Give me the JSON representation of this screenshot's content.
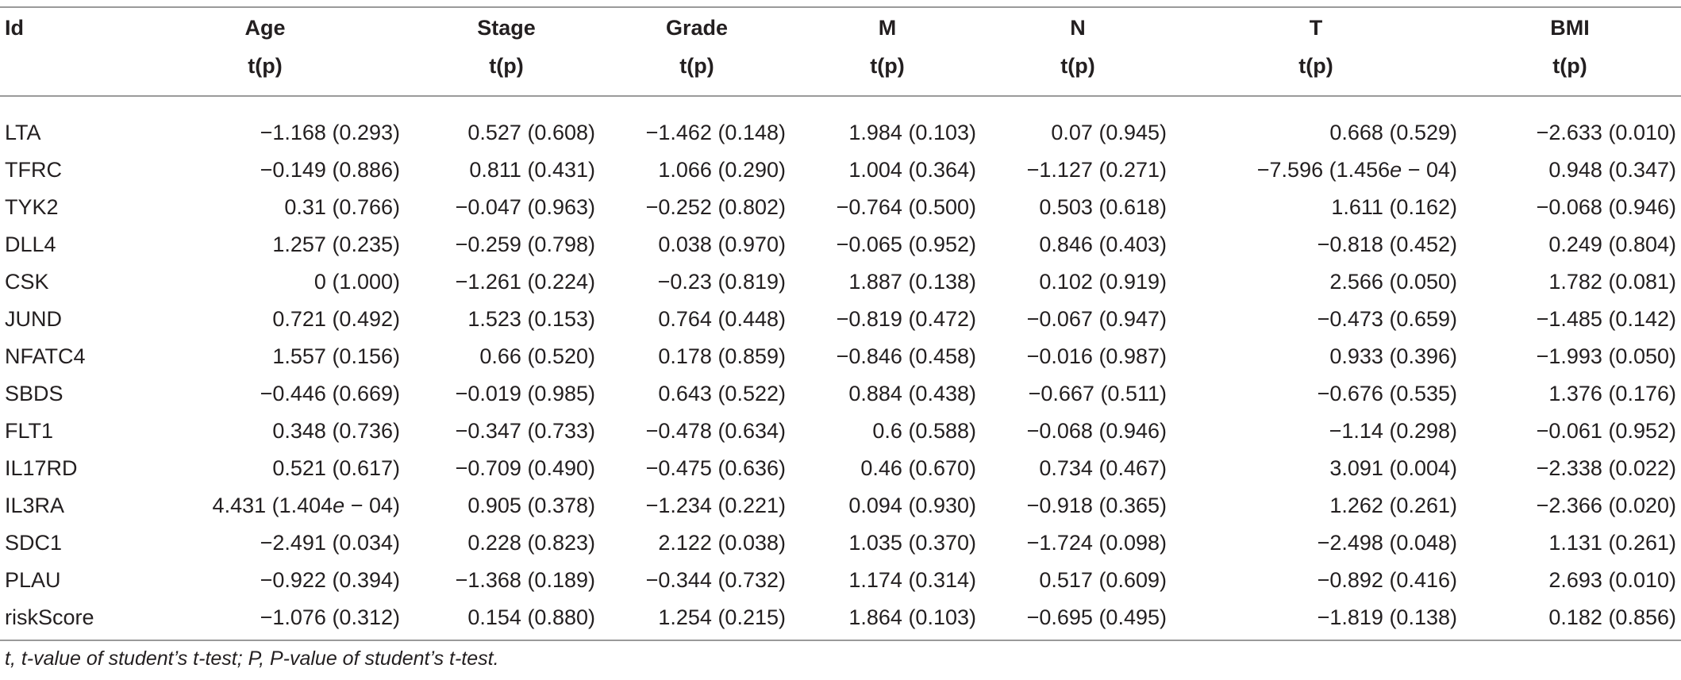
{
  "columns": [
    "Id",
    "Age",
    "Stage",
    "Grade",
    "M",
    "N",
    "T",
    "BMI"
  ],
  "subheader": "t(p)",
  "rows": [
    {
      "id": "LTA",
      "cells": [
        "−1.168 (0.293)",
        "0.527 (0.608)",
        "−1.462 (0.148)",
        "1.984 (0.103)",
        "0.07 (0.945)",
        "0.668 (0.529)",
        "−2.633 (0.010)"
      ]
    },
    {
      "id": "TFRC",
      "cells": [
        "−0.149 (0.886)",
        "0.811 (0.431)",
        "1.066 (0.290)",
        "1.004 (0.364)",
        "−1.127 (0.271)",
        "−7.596 (1.456e − 04)",
        "0.948 (0.347)"
      ]
    },
    {
      "id": "TYK2",
      "cells": [
        "0.31 (0.766)",
        "−0.047 (0.963)",
        "−0.252 (0.802)",
        "−0.764 (0.500)",
        "0.503 (0.618)",
        "1.611 (0.162)",
        "−0.068 (0.946)"
      ]
    },
    {
      "id": "DLL4",
      "cells": [
        "1.257 (0.235)",
        "−0.259 (0.798)",
        "0.038 (0.970)",
        "−0.065 (0.952)",
        "0.846 (0.403)",
        "−0.818 (0.452)",
        "0.249 (0.804)"
      ]
    },
    {
      "id": "CSK",
      "cells": [
        "0 (1.000)",
        "−1.261 (0.224)",
        "−0.23 (0.819)",
        "1.887 (0.138)",
        "0.102 (0.919)",
        "2.566 (0.050)",
        "1.782 (0.081)"
      ]
    },
    {
      "id": "JUND",
      "cells": [
        "0.721 (0.492)",
        "1.523 (0.153)",
        "0.764 (0.448)",
        "−0.819 (0.472)",
        "−0.067 (0.947)",
        "−0.473 (0.659)",
        "−1.485 (0.142)"
      ]
    },
    {
      "id": "NFATC4",
      "cells": [
        "1.557 (0.156)",
        "0.66 (0.520)",
        "0.178 (0.859)",
        "−0.846 (0.458)",
        "−0.016 (0.987)",
        "0.933 (0.396)",
        "−1.993 (0.050)"
      ]
    },
    {
      "id": "SBDS",
      "cells": [
        "−0.446 (0.669)",
        "−0.019 (0.985)",
        "0.643 (0.522)",
        "0.884 (0.438)",
        "−0.667 (0.511)",
        "−0.676 (0.535)",
        "1.376 (0.176)"
      ]
    },
    {
      "id": "FLT1",
      "cells": [
        "0.348 (0.736)",
        "−0.347 (0.733)",
        "−0.478 (0.634)",
        "0.6 (0.588)",
        "−0.068 (0.946)",
        "−1.14 (0.298)",
        "−0.061 (0.952)"
      ]
    },
    {
      "id": "IL17RD",
      "cells": [
        "0.521 (0.617)",
        "−0.709 (0.490)",
        "−0.475 (0.636)",
        "0.46 (0.670)",
        "0.734 (0.467)",
        "3.091 (0.004)",
        "−2.338 (0.022)"
      ]
    },
    {
      "id": "IL3RA",
      "cells": [
        "4.431 (1.404e − 04)",
        "0.905 (0.378)",
        "−1.234 (0.221)",
        "0.094 (0.930)",
        "−0.918 (0.365)",
        "1.262 (0.261)",
        "−2.366 (0.020)"
      ]
    },
    {
      "id": "SDC1",
      "cells": [
        "−2.491 (0.034)",
        "0.228 (0.823)",
        "2.122 (0.038)",
        "1.035 (0.370)",
        "−1.724 (0.098)",
        "−2.498 (0.048)",
        "1.131 (0.261)"
      ]
    },
    {
      "id": "PLAU",
      "cells": [
        "−0.922 (0.394)",
        "−1.368 (0.189)",
        "−0.344 (0.732)",
        "1.174 (0.314)",
        "0.517 (0.609)",
        "−0.892 (0.416)",
        "2.693 (0.010)"
      ]
    },
    {
      "id": "riskScore",
      "cells": [
        "−1.076 (0.312)",
        "0.154 (0.880)",
        "1.254 (0.215)",
        "1.864 (0.103)",
        "−0.695 (0.495)",
        "−1.819 (0.138)",
        "0.182 (0.856)"
      ]
    }
  ],
  "footnote": "t, t-value of student’s t-test; P, P-value of student’s t-test."
}
